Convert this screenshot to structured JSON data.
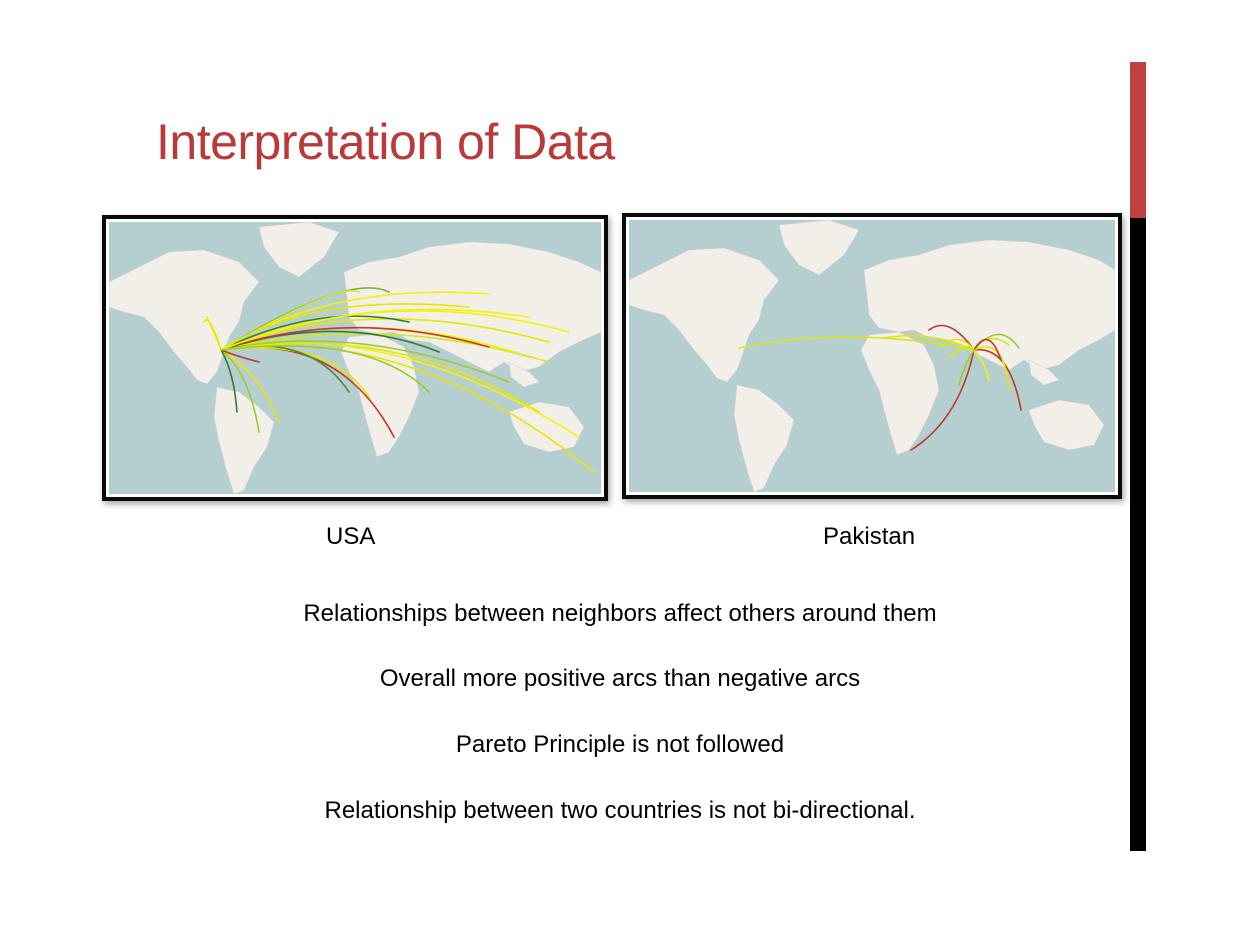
{
  "slide": {
    "title": "Interpretation of Data",
    "accent_color": "#b83a3a",
    "side_bar_colors": [
      "#c0413f",
      "#000000"
    ]
  },
  "maps": [
    {
      "caption": "USA",
      "description_colors": {
        "ocean": "#b5ced0",
        "land": "#f2efe9",
        "positive": "#f2f20a",
        "neutral": "#9acd32",
        "negative": "#c0392b",
        "strong": "#2e7d32"
      }
    },
    {
      "caption": "Pakistan",
      "description_colors": {
        "ocean": "#b5ced0",
        "land": "#f2efe9",
        "positive": "#d4e81a",
        "negative": "#c0392b"
      }
    }
  ],
  "bullets": [
    "Relationships between neighbors affect others around them",
    "Overall more positive arcs than negative arcs",
    "Pareto Principle is not followed",
    "Relationship between two countries is not bi-directional."
  ]
}
